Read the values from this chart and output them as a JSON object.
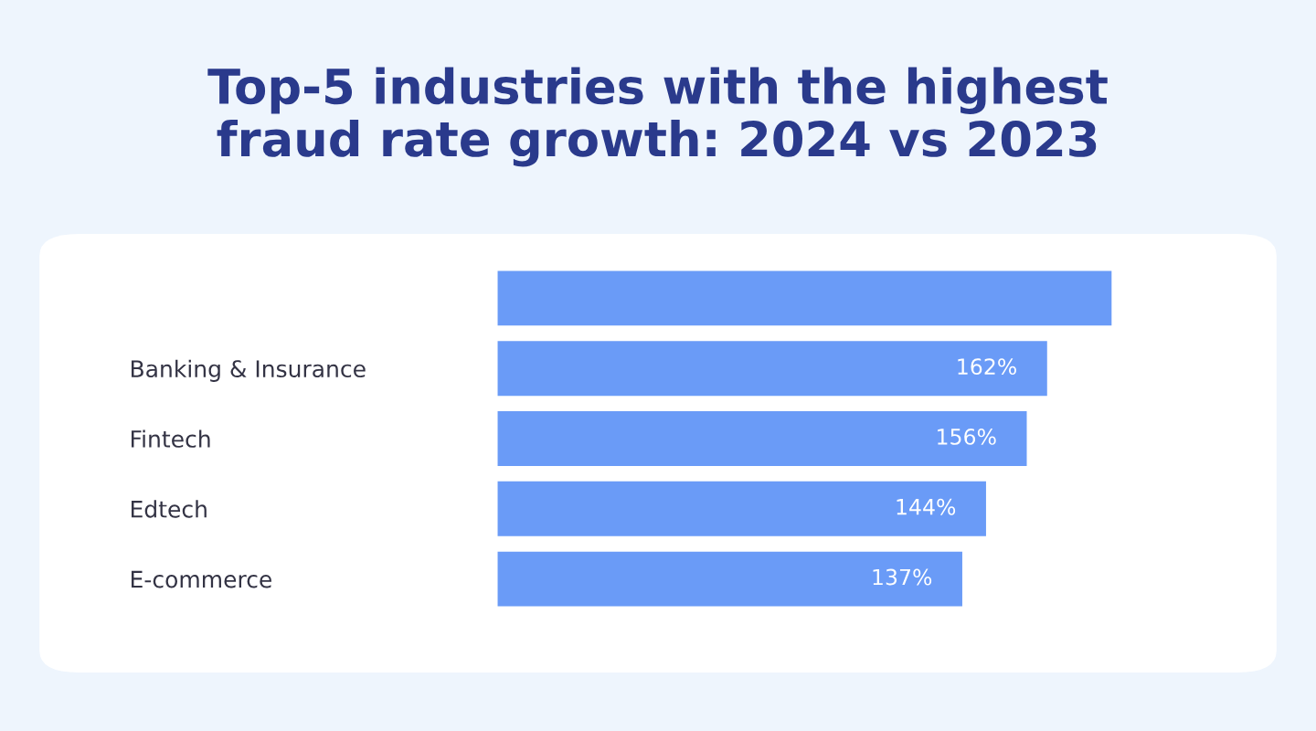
{
  "chart_data": {
    "type": "bar",
    "orientation": "horizontal",
    "title": "Top-5 industries with the highest\nfraud rate growth: 2024 vs 2023",
    "categories": [
      null,
      "Banking & Insurance",
      "Fintech",
      "Edtech",
      "E-commerce"
    ],
    "values": [
      181,
      162,
      156,
      144,
      137
    ],
    "value_labels": [
      null,
      "162%",
      "156%",
      "144%",
      "137%"
    ],
    "color": "#6a9bf7",
    "tick_labels": "y"
  }
}
